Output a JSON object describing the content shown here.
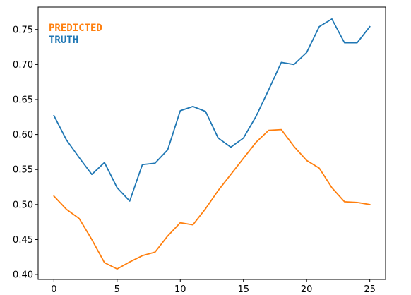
{
  "chart_data": {
    "type": "line",
    "title": "",
    "xlabel": "",
    "ylabel": "",
    "x": [
      0,
      1,
      2,
      3,
      4,
      5,
      6,
      7,
      8,
      9,
      10,
      11,
      12,
      13,
      14,
      15,
      16,
      17,
      18,
      19,
      20,
      21,
      22,
      23,
      24,
      25
    ],
    "xlim": [
      -1.25,
      26.25
    ],
    "ylim": [
      0.393,
      0.782
    ],
    "xticks": [
      0,
      5,
      10,
      15,
      20,
      25
    ],
    "yticks": [
      0.4,
      0.45,
      0.5,
      0.55,
      0.6,
      0.65,
      0.7,
      0.75
    ],
    "xtick_labels": [
      "0",
      "5",
      "10",
      "15",
      "20",
      "25"
    ],
    "ytick_labels": [
      "0.40",
      "0.45",
      "0.50",
      "0.55",
      "0.60",
      "0.65",
      "0.70",
      "0.75"
    ],
    "grid": false,
    "legend_position": "top-left",
    "series": [
      {
        "name": "TRUTH",
        "color": "#1f77b4",
        "values": [
          0.627,
          0.592,
          0.567,
          0.543,
          0.56,
          0.524,
          0.505,
          0.557,
          0.559,
          0.578,
          0.634,
          0.64,
          0.633,
          0.595,
          0.582,
          0.595,
          0.626,
          0.664,
          0.703,
          0.7,
          0.717,
          0.754,
          0.765,
          0.731,
          0.731,
          0.754
        ]
      },
      {
        "name": "PREDICTED",
        "color": "#ff7f0e",
        "values": [
          0.512,
          0.493,
          0.48,
          0.45,
          0.417,
          0.408,
          0.418,
          0.427,
          0.432,
          0.455,
          0.474,
          0.471,
          0.494,
          0.52,
          0.543,
          0.566,
          0.589,
          0.606,
          0.607,
          0.583,
          0.563,
          0.552,
          0.524,
          0.504,
          0.503,
          0.5
        ]
      }
    ],
    "legend": [
      {
        "label": "PREDICTED",
        "color": "#ff7f0e"
      },
      {
        "label": "TRUTH",
        "color": "#1f77b4"
      }
    ]
  }
}
